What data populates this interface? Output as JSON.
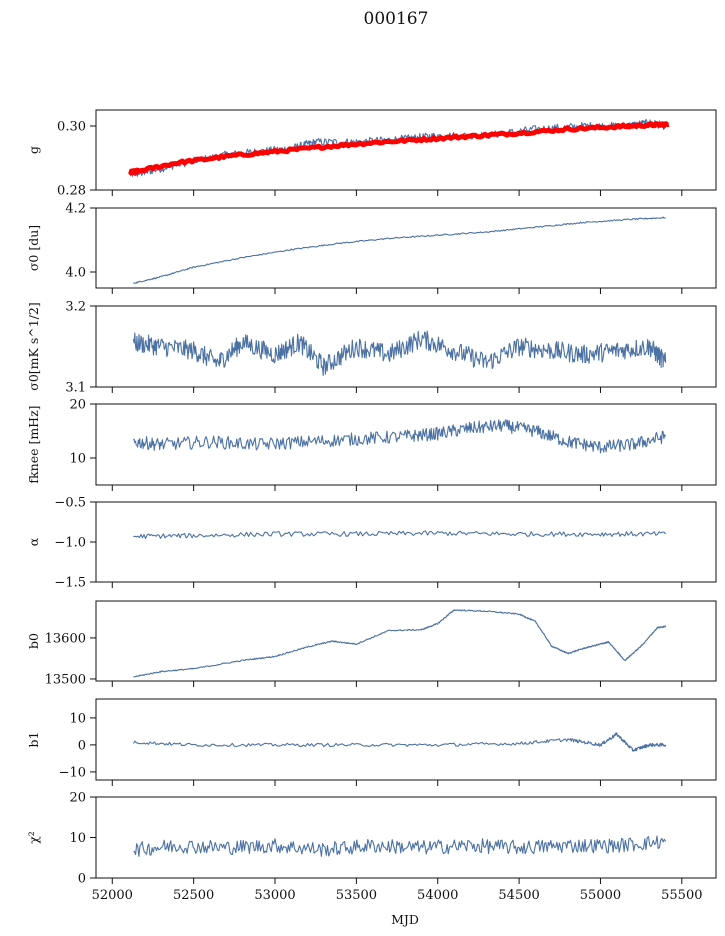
{
  "figure_title": "000167",
  "x_axis_label": "MJD",
  "x_ticks": [
    52000,
    52500,
    53000,
    53500,
    54000,
    54500,
    55000,
    55500
  ],
  "colors": {
    "series": "#4c72a4",
    "fit": "#ff0000",
    "frame": "#111111"
  },
  "chart_data": [
    {
      "type": "line",
      "id": "g",
      "ylabel": "g",
      "xlim": [
        51900,
        55710
      ],
      "ylim": [
        0.28,
        0.305
      ],
      "yticks": [
        0.28,
        0.3
      ],
      "ytick_labels": [
        "0.28",
        "0.30"
      ],
      "series": [
        {
          "color": "#4c72a4",
          "x": [
            52110,
            52200,
            52400,
            52700,
            52900,
            53100,
            53250,
            53500,
            53800,
            54000,
            54300,
            54600,
            54900,
            55150,
            55300,
            55400
          ],
          "values": [
            0.285,
            0.2855,
            0.288,
            0.291,
            0.292,
            0.293,
            0.295,
            0.295,
            0.296,
            0.297,
            0.297,
            0.299,
            0.3,
            0.3,
            0.301,
            0.3
          ]
        },
        {
          "color": "#ff0000",
          "x": [
            52110,
            52150,
            52400,
            52700,
            53000,
            53300,
            53600,
            53900,
            54200,
            54500,
            54800,
            55100,
            55300,
            55420
          ],
          "values": [
            0.2855,
            0.2858,
            0.2885,
            0.2905,
            0.292,
            0.2935,
            0.2948,
            0.2958,
            0.2968,
            0.2978,
            0.299,
            0.2998,
            0.3003,
            0.3005
          ]
        }
      ]
    },
    {
      "type": "line",
      "id": "sigma0-du",
      "ylabel": "σ0 [du]",
      "xlim": [
        51900,
        55710
      ],
      "ylim": [
        3.95,
        4.2
      ],
      "yticks": [
        4.0,
        4.2
      ],
      "ytick_labels": [
        "4.0",
        "4.2"
      ],
      "series": [
        {
          "color": "#4c72a4",
          "x": [
            52130,
            52300,
            52500,
            52800,
            53100,
            53400,
            53700,
            54000,
            54300,
            54600,
            54900,
            55200,
            55400
          ],
          "values": [
            3.965,
            3.985,
            4.015,
            4.045,
            4.07,
            4.09,
            4.105,
            4.115,
            4.125,
            4.14,
            4.155,
            4.165,
            4.17
          ]
        }
      ]
    },
    {
      "type": "line",
      "id": "sigma0-mks",
      "ylabel": "σ0[mK s^1/2]",
      "xlim": [
        51900,
        55710
      ],
      "ylim": [
        3.1,
        3.2
      ],
      "yticks": [
        3.1,
        3.2
      ],
      "ytick_labels": [
        "3.1",
        "3.2"
      ],
      "series": [
        {
          "color": "#4c72a4",
          "x": [
            52130,
            52300,
            52500,
            52650,
            52800,
            53000,
            53150,
            53300,
            53500,
            53700,
            53900,
            54100,
            54300,
            54500,
            54700,
            54900,
            55100,
            55300,
            55400
          ],
          "values": [
            3.155,
            3.15,
            3.145,
            3.13,
            3.155,
            3.14,
            3.155,
            3.125,
            3.15,
            3.14,
            3.16,
            3.145,
            3.13,
            3.15,
            3.145,
            3.14,
            3.145,
            3.15,
            3.13
          ]
        }
      ]
    },
    {
      "type": "line",
      "id": "fknee",
      "ylabel": "fknee [mHz]",
      "xlim": [
        51900,
        55710
      ],
      "ylim": [
        5,
        20
      ],
      "yticks": [
        10,
        20
      ],
      "ytick_labels": [
        "10",
        "20"
      ],
      "series": [
        {
          "color": "#4c72a4",
          "x": [
            52130,
            52300,
            52600,
            52900,
            53200,
            53500,
            53800,
            54000,
            54200,
            54400,
            54600,
            54800,
            55000,
            55200,
            55400
          ],
          "values": [
            13,
            12.5,
            13,
            12.5,
            13,
            13.5,
            14,
            14.5,
            15.5,
            16,
            15,
            13,
            12,
            12.5,
            14
          ]
        }
      ]
    },
    {
      "type": "line",
      "id": "alpha",
      "ylabel": "α",
      "xlim": [
        51900,
        55710
      ],
      "ylim": [
        -1.5,
        -0.5
      ],
      "yticks": [
        -1.5,
        -1.0,
        -0.5
      ],
      "ytick_labels": [
        "−1.5",
        "−1.0",
        "−0.5"
      ],
      "series": [
        {
          "color": "#4c72a4",
          "x": [
            52130,
            52500,
            53000,
            53500,
            54000,
            54500,
            55000,
            55400
          ],
          "values": [
            -0.93,
            -0.92,
            -0.9,
            -0.9,
            -0.89,
            -0.9,
            -0.9,
            -0.9
          ]
        }
      ]
    },
    {
      "type": "line",
      "id": "b0",
      "ylabel": "b0",
      "xlim": [
        51900,
        55710
      ],
      "ylim": [
        13495,
        13690
      ],
      "yticks": [
        13500,
        13600
      ],
      "ytick_labels": [
        "13500",
        "13600"
      ],
      "series": [
        {
          "color": "#4c72a4",
          "x": [
            52130,
            52300,
            52500,
            52800,
            53000,
            53200,
            53350,
            53500,
            53700,
            53900,
            54000,
            54100,
            54300,
            54500,
            54600,
            54700,
            54800,
            54900,
            55000,
            55050,
            55150,
            55250,
            55350,
            55400
          ],
          "values": [
            13505,
            13518,
            13525,
            13545,
            13555,
            13578,
            13592,
            13585,
            13618,
            13620,
            13635,
            13668,
            13665,
            13658,
            13640,
            13580,
            13562,
            13575,
            13585,
            13590,
            13545,
            13580,
            13625,
            13628
          ]
        }
      ]
    },
    {
      "type": "line",
      "id": "b1",
      "ylabel": "b1",
      "xlim": [
        51900,
        55710
      ],
      "ylim": [
        -13,
        17
      ],
      "yticks": [
        -10,
        0,
        10
      ],
      "ytick_labels": [
        "−10",
        "0",
        "10"
      ],
      "series": [
        {
          "color": "#4c72a4",
          "x": [
            52130,
            52500,
            53000,
            53500,
            54000,
            54500,
            54800,
            55000,
            55100,
            55200,
            55300,
            55400
          ],
          "values": [
            1,
            0,
            0,
            0,
            0,
            0.5,
            2,
            0,
            4,
            -2,
            0,
            0
          ]
        }
      ]
    },
    {
      "type": "line",
      "id": "chi2",
      "ylabel": "χ²",
      "xlim": [
        51900,
        55710
      ],
      "ylim": [
        0,
        20
      ],
      "yticks": [
        0,
        10,
        20
      ],
      "ytick_labels": [
        "0",
        "10",
        "20"
      ],
      "series": [
        {
          "color": "#4c72a4",
          "x": [
            52130,
            52400,
            52700,
            53000,
            53300,
            53600,
            53900,
            54200,
            54500,
            54800,
            55100,
            55400
          ],
          "values": [
            7,
            8,
            7.5,
            8,
            7,
            8,
            7.5,
            8,
            7.5,
            8,
            8,
            9
          ]
        }
      ]
    }
  ]
}
